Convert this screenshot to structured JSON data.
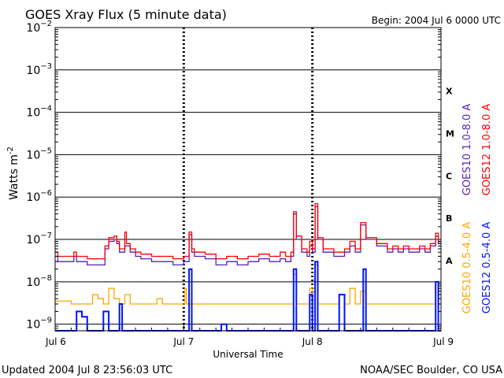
{
  "header": {
    "title": "GOES Xray Flux (5 minute data)",
    "begin": "Begin:  2004 Jul 6 0000 UTC"
  },
  "footer": {
    "updated": "Updated 2004 Jul  8 23:56:03 UTC",
    "credit": "NOAA/SEC Boulder, CO USA"
  },
  "chart_data": {
    "type": "line",
    "title": "GOES Xray Flux (5 minute data)",
    "xlabel": "Universal Time",
    "ylabel": "Watts m",
    "ylabel_superscript": "-2",
    "yscale": "log",
    "xlim": [
      0,
      72
    ],
    "ylim": [
      7e-10,
      0.01
    ],
    "grid": true,
    "legend": "right",
    "x_ticks": [
      {
        "x": 0,
        "label": "Jul 6"
      },
      {
        "x": 24,
        "label": "Jul 7"
      },
      {
        "x": 48,
        "label": "Jul 8"
      },
      {
        "x": 72,
        "label": "Jul 9"
      }
    ],
    "y_ticks": [
      {
        "exp": -2,
        "base": "10",
        "power": "−2"
      },
      {
        "exp": -3,
        "base": "10",
        "power": "−3"
      },
      {
        "exp": -4,
        "base": "10",
        "power": "−4"
      },
      {
        "exp": -5,
        "base": "10",
        "power": "−5"
      },
      {
        "exp": -6,
        "base": "10",
        "power": "−6"
      },
      {
        "exp": -7,
        "base": "10",
        "power": "−7"
      },
      {
        "exp": -8,
        "base": "10",
        "power": "−8"
      },
      {
        "exp": -9,
        "base": "10",
        "power": "−9"
      }
    ],
    "flare_classes": [
      {
        "label": "X",
        "exp": -3.5
      },
      {
        "label": "M",
        "exp": -4.5
      },
      {
        "label": "C",
        "exp": -5.5
      },
      {
        "label": "B",
        "exp": -6.5
      },
      {
        "label": "A",
        "exp": -7.5
      }
    ],
    "series": [
      {
        "name": "GOES10 1.0-8.0 A",
        "color": "#5a1eb4",
        "points": [
          [
            0,
            4e-08
          ],
          [
            0.5,
            3e-08
          ],
          [
            2,
            3e-08
          ],
          [
            3.5,
            4e-08
          ],
          [
            4,
            3e-08
          ],
          [
            6,
            2.5e-08
          ],
          [
            9,
            2.5e-08
          ],
          [
            9.3,
            6e-08
          ],
          [
            10,
            9e-08
          ],
          [
            11,
            1e-07
          ],
          [
            11.5,
            8e-08
          ],
          [
            12,
            5e-08
          ],
          [
            13,
            7e-08
          ],
          [
            14,
            5e-08
          ],
          [
            15,
            4e-08
          ],
          [
            16,
            3.5e-08
          ],
          [
            18,
            3e-08
          ],
          [
            20,
            3e-08
          ],
          [
            22,
            2.5e-08
          ],
          [
            24,
            3e-08
          ],
          [
            25,
            1.3e-07
          ],
          [
            25.5,
            5e-08
          ],
          [
            26,
            4e-08
          ],
          [
            28,
            3.5e-08
          ],
          [
            30,
            2.5e-08
          ],
          [
            32,
            3e-08
          ],
          [
            34,
            2.5e-08
          ],
          [
            36,
            3e-08
          ],
          [
            38,
            3.5e-08
          ],
          [
            40,
            3e-08
          ],
          [
            42,
            3.5e-08
          ],
          [
            43,
            3e-08
          ],
          [
            44,
            4e-08
          ],
          [
            44.5,
            4e-07
          ],
          [
            45,
            1e-07
          ],
          [
            46,
            5e-08
          ],
          [
            47,
            4e-08
          ],
          [
            47.5,
            7e-08
          ],
          [
            48,
            5e-08
          ],
          [
            48.5,
            6e-07
          ],
          [
            49,
            1e-07
          ],
          [
            50,
            5e-08
          ],
          [
            52,
            4e-08
          ],
          [
            54,
            5e-08
          ],
          [
            55,
            7e-08
          ],
          [
            56,
            5e-08
          ],
          [
            57,
            2.2e-07
          ],
          [
            58,
            1e-07
          ],
          [
            60,
            7e-08
          ],
          [
            62,
            5e-08
          ],
          [
            63,
            6e-08
          ],
          [
            64,
            5e-08
          ],
          [
            65,
            6e-08
          ],
          [
            66,
            5e-08
          ],
          [
            68,
            6e-08
          ],
          [
            69,
            5e-08
          ],
          [
            70,
            7e-08
          ],
          [
            71,
            1.2e-07
          ],
          [
            71.5,
            8e-08
          ],
          [
            72,
            8e-08
          ]
        ]
      },
      {
        "name": "GOES12 1.0-8.0 A",
        "color": "#ff0000",
        "points": [
          [
            0,
            5e-08
          ],
          [
            0.5,
            4e-08
          ],
          [
            2,
            4e-08
          ],
          [
            3.5,
            5e-08
          ],
          [
            4,
            4e-08
          ],
          [
            6,
            3.5e-08
          ],
          [
            9,
            3.5e-08
          ],
          [
            9.3,
            7e-08
          ],
          [
            10,
            1.1e-07
          ],
          [
            11,
            1.2e-07
          ],
          [
            11.5,
            9e-08
          ],
          [
            12,
            6e-08
          ],
          [
            13,
            1.5e-07
          ],
          [
            13.3,
            8e-08
          ],
          [
            14,
            6e-08
          ],
          [
            15,
            5e-08
          ],
          [
            16,
            4.5e-08
          ],
          [
            18,
            4e-08
          ],
          [
            20,
            4e-08
          ],
          [
            22,
            3.5e-08
          ],
          [
            24,
            4e-08
          ],
          [
            25,
            1.5e-07
          ],
          [
            25.5,
            6e-08
          ],
          [
            26,
            5e-08
          ],
          [
            28,
            4.5e-08
          ],
          [
            30,
            3.5e-08
          ],
          [
            32,
            4e-08
          ],
          [
            34,
            3.5e-08
          ],
          [
            36,
            4e-08
          ],
          [
            38,
            4.5e-08
          ],
          [
            40,
            4e-08
          ],
          [
            42,
            5e-08
          ],
          [
            43,
            4e-08
          ],
          [
            44,
            5e-08
          ],
          [
            44.5,
            4.5e-07
          ],
          [
            45,
            1.2e-07
          ],
          [
            46,
            6e-08
          ],
          [
            47,
            5e-08
          ],
          [
            47.5,
            9e-08
          ],
          [
            48,
            6e-08
          ],
          [
            48.5,
            7e-07
          ],
          [
            49,
            1.1e-07
          ],
          [
            50,
            6e-08
          ],
          [
            52,
            5e-08
          ],
          [
            54,
            6e-08
          ],
          [
            55,
            9e-08
          ],
          [
            56,
            6e-08
          ],
          [
            57,
            2.5e-07
          ],
          [
            58,
            1.1e-07
          ],
          [
            60,
            8e-08
          ],
          [
            62,
            6e-08
          ],
          [
            63,
            7e-08
          ],
          [
            64,
            6e-08
          ],
          [
            65,
            7e-08
          ],
          [
            66,
            6e-08
          ],
          [
            68,
            7e-08
          ],
          [
            69,
            6e-08
          ],
          [
            70,
            8e-08
          ],
          [
            71,
            1.4e-07
          ],
          [
            71.5,
            9e-08
          ],
          [
            72,
            9e-08
          ]
        ]
      },
      {
        "name": "GOES10 0.5-4.0 A",
        "color": "#ffa500",
        "points": [
          [
            0,
            3.5e-09
          ],
          [
            3,
            3e-09
          ],
          [
            6,
            3e-09
          ],
          [
            7,
            5e-09
          ],
          [
            8,
            4e-09
          ],
          [
            9,
            3e-09
          ],
          [
            10,
            7e-09
          ],
          [
            11,
            4e-09
          ],
          [
            12,
            3e-09
          ],
          [
            13,
            5e-09
          ],
          [
            14,
            3e-09
          ],
          [
            18,
            3e-09
          ],
          [
            19,
            4e-09
          ],
          [
            20,
            3e-09
          ],
          [
            24,
            3e-09
          ],
          [
            24.2,
            7e-09
          ],
          [
            24.5,
            3e-09
          ],
          [
            28,
            3e-09
          ],
          [
            34,
            3e-09
          ],
          [
            36,
            3e-09
          ],
          [
            40,
            3e-09
          ],
          [
            44,
            3e-09
          ],
          [
            44.5,
            1.5e-08
          ],
          [
            45,
            3e-09
          ],
          [
            47,
            3e-09
          ],
          [
            47.5,
            7e-09
          ],
          [
            48,
            3e-09
          ],
          [
            48.5,
            2.5e-08
          ],
          [
            49,
            3e-09
          ],
          [
            52,
            3e-09
          ],
          [
            53,
            5e-09
          ],
          [
            54,
            3e-09
          ],
          [
            55,
            7e-09
          ],
          [
            56,
            3e-09
          ],
          [
            57,
            6e-09
          ],
          [
            58,
            3e-09
          ],
          [
            62,
            3e-09
          ],
          [
            66,
            3e-09
          ],
          [
            70,
            3e-09
          ],
          [
            71,
            1e-08
          ],
          [
            71.5,
            3e-09
          ],
          [
            72,
            3e-09
          ]
        ]
      },
      {
        "name": "GOES12 0.5-4.0 A",
        "color": "#0014ff",
        "points": [
          [
            0,
            7e-10
          ],
          [
            3,
            7e-10
          ],
          [
            4,
            2e-09
          ],
          [
            5,
            1.5e-09
          ],
          [
            6,
            7e-10
          ],
          [
            8,
            7e-10
          ],
          [
            9,
            2e-09
          ],
          [
            10,
            7e-10
          ],
          [
            11,
            7e-10
          ],
          [
            12,
            3e-09
          ],
          [
            12.5,
            7e-10
          ],
          [
            24,
            7e-10
          ],
          [
            25,
            2e-08
          ],
          [
            25.5,
            7e-10
          ],
          [
            30,
            7e-10
          ],
          [
            31,
            1e-09
          ],
          [
            32,
            7e-10
          ],
          [
            44,
            7e-10
          ],
          [
            44.5,
            2e-08
          ],
          [
            45,
            7e-10
          ],
          [
            47,
            7e-10
          ],
          [
            47.5,
            5e-09
          ],
          [
            48,
            7e-10
          ],
          [
            48.5,
            3e-08
          ],
          [
            49,
            7e-10
          ],
          [
            52,
            7e-10
          ],
          [
            53,
            5e-09
          ],
          [
            54,
            7e-10
          ],
          [
            57,
            7e-10
          ],
          [
            57.5,
            2e-08
          ],
          [
            58,
            7e-10
          ],
          [
            70,
            7e-10
          ],
          [
            71,
            1e-08
          ],
          [
            71.5,
            7e-10
          ],
          [
            72,
            7e-10
          ]
        ]
      }
    ]
  }
}
